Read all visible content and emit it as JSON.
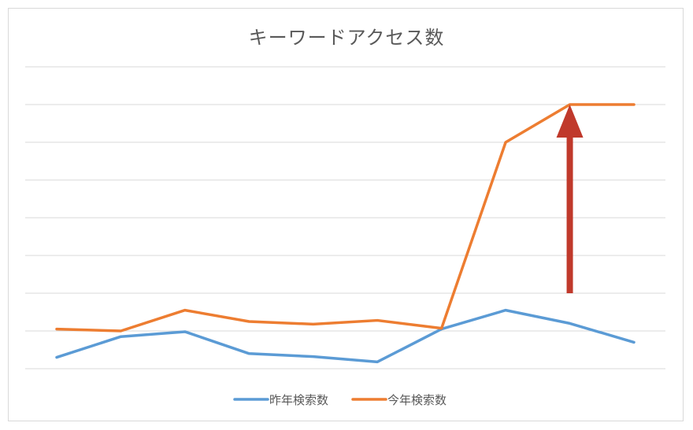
{
  "chart_data": {
    "type": "line",
    "title": "キーワードアクセス数",
    "xlabel": "",
    "ylabel": "",
    "x": [
      1,
      2,
      3,
      4,
      5,
      6,
      7,
      8,
      9,
      10
    ],
    "ylim": [
      0,
      8
    ],
    "grid": true,
    "y_tick_labels_shown": false,
    "x_tick_labels_shown": false,
    "legend_position": "bottom",
    "series": [
      {
        "name": "昨年検索数",
        "color": "#5b9bd5",
        "values": [
          0.3,
          0.85,
          0.98,
          0.4,
          0.32,
          0.18,
          1.05,
          1.55,
          1.2,
          0.7
        ]
      },
      {
        "name": "今年検索数",
        "color": "#ed7d31",
        "values": [
          1.05,
          1.0,
          1.55,
          1.25,
          1.18,
          1.28,
          1.07,
          6.0,
          7.0,
          7.0
        ]
      }
    ],
    "annotations": [
      {
        "type": "arrow",
        "color": "#c0392b",
        "x": 9,
        "y_from": 2.0,
        "y_to": 7.0
      }
    ]
  }
}
